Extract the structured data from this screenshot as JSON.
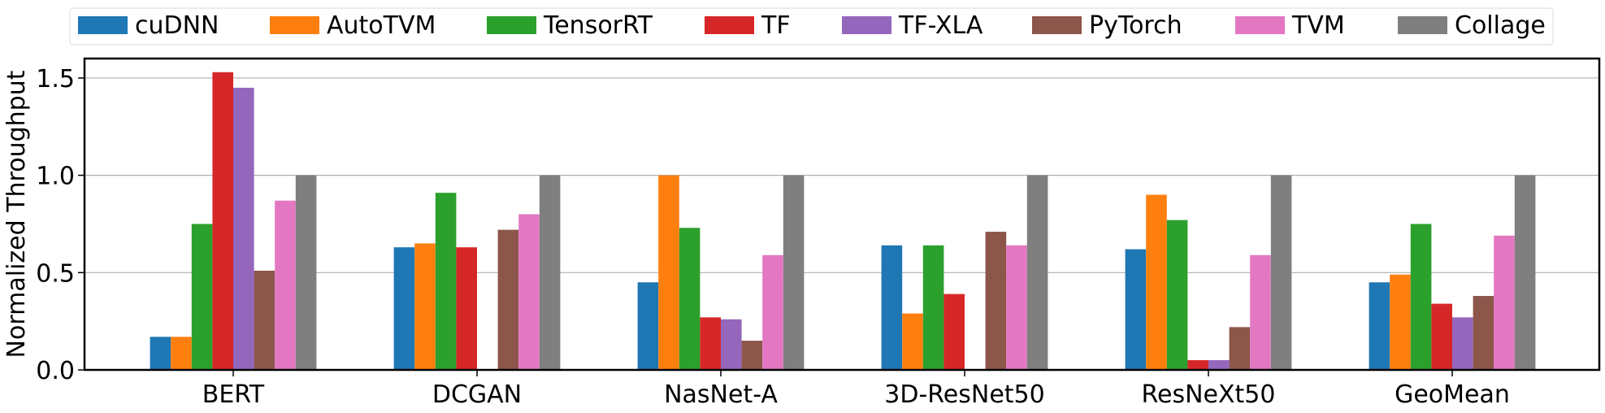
{
  "chart_data": {
    "type": "bar",
    "title": "",
    "xlabel": "",
    "ylabel": "Normalized Throughput",
    "ylim": [
      0,
      1.6
    ],
    "yticks": [
      0.0,
      0.5,
      1.0,
      1.5
    ],
    "ytick_labels": [
      "0.0",
      "0.5",
      "1.0",
      "1.5"
    ],
    "grid": "horizontal",
    "legend_position": "top",
    "categories": [
      "BERT",
      "DCGAN",
      "NasNet-A",
      "3D-ResNet50",
      "ResNeXt50",
      "GeoMean"
    ],
    "series": [
      {
        "name": "cuDNN",
        "color": "#1f77b4",
        "values": [
          0.17,
          0.63,
          0.45,
          0.64,
          0.62,
          0.45
        ]
      },
      {
        "name": "AutoTVM",
        "color": "#ff7f0e",
        "values": [
          0.17,
          0.65,
          1.0,
          0.29,
          0.9,
          0.49
        ]
      },
      {
        "name": "TensorRT",
        "color": "#2ca02c",
        "values": [
          0.75,
          0.91,
          0.73,
          0.64,
          0.77,
          0.75
        ]
      },
      {
        "name": "TF",
        "color": "#d62728",
        "values": [
          1.53,
          0.63,
          0.27,
          0.39,
          0.05,
          0.34
        ]
      },
      {
        "name": "TF-XLA",
        "color": "#9467bd",
        "values": [
          1.45,
          0,
          0.26,
          0,
          0.05,
          0.27
        ]
      },
      {
        "name": "PyTorch",
        "color": "#8c564b",
        "values": [
          0.51,
          0.72,
          0.15,
          0.71,
          0.22,
          0.38
        ]
      },
      {
        "name": "TVM",
        "color": "#e377c2",
        "values": [
          0.87,
          0.8,
          0.59,
          0.64,
          0.59,
          0.69
        ]
      },
      {
        "name": "Collage",
        "color": "#7f7f7f",
        "values": [
          1.0,
          1.0,
          1.0,
          1.0,
          1.0,
          1.0
        ]
      }
    ]
  }
}
